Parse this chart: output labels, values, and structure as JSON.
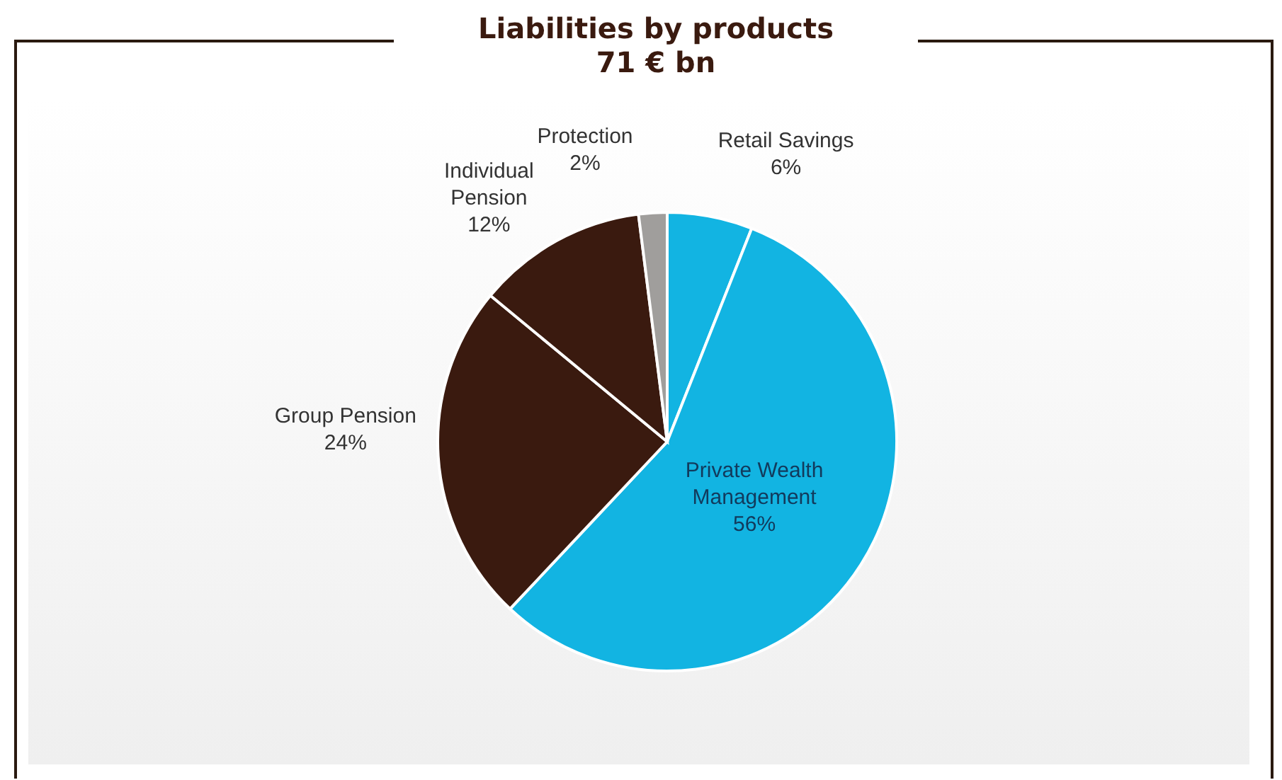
{
  "chart_data": {
    "type": "pie",
    "title": "Liabilities by products",
    "subtitle": "71 € bn",
    "categories": [
      "Retail Savings",
      "Private Wealth Management",
      "Group Pension",
      "Individual Pension",
      "Protection"
    ],
    "values": [
      6,
      56,
      24,
      12,
      2
    ],
    "value_labels": [
      "6%",
      "56%",
      "24%",
      "12%",
      "2%"
    ],
    "colors": [
      "#12b4e2",
      "#12b4e2",
      "#3a1a0f",
      "#3a1a0f",
      "#a09e9c"
    ],
    "legend": false
  }
}
